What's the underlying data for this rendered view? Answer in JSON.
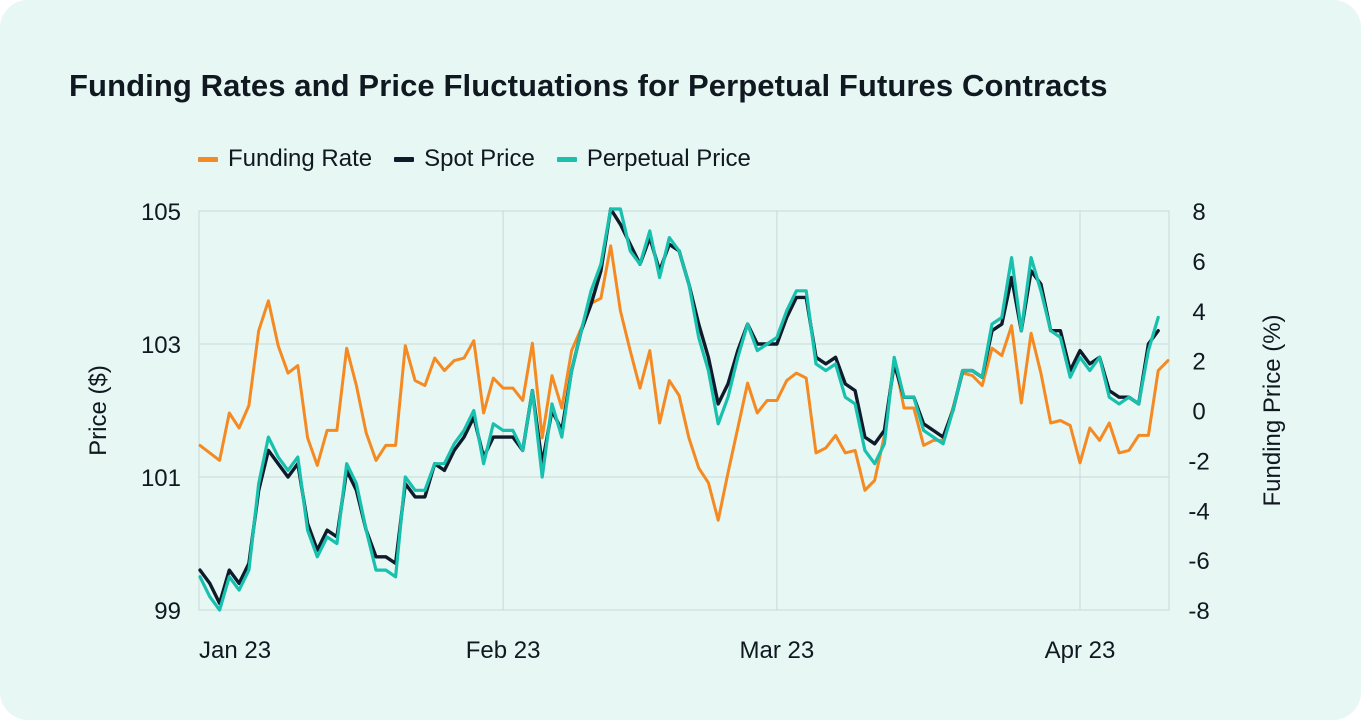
{
  "chart_data": {
    "type": "line",
    "title": "Funding Rates and Price Fluctuations for Perpetual Futures Contracts",
    "ylabel_left": "Price ($)",
    "ylabel_right": "Funding Price (%)",
    "ylim_left": [
      99,
      105
    ],
    "ylim_right": [
      -8,
      8
    ],
    "yticks_left": [
      "105",
      "103",
      "101",
      "99"
    ],
    "yticks_right": [
      "8",
      "6",
      "4",
      "2",
      "0",
      "-2",
      "-4",
      "-6",
      "-8"
    ],
    "x_labels": [
      "Jan 23",
      "Feb 23",
      "Mar 23",
      "Apr 23"
    ],
    "x_label_index": [
      0,
      31,
      59,
      90
    ],
    "grid": true,
    "legend": [
      "Funding Rate",
      "Spot Price",
      "Perpetual Price"
    ],
    "colors": {
      "funding": "#f58a22",
      "spot": "#0f1b2a",
      "perpetual": "#18c0ae"
    },
    "series": [
      {
        "name": "Funding Rate",
        "axis": "right",
        "values": [
          -1.4,
          -1.7,
          -2.0,
          -0.1,
          -0.7,
          0.2,
          3.2,
          4.4,
          2.6,
          1.5,
          1.8,
          -1.1,
          -2.2,
          -0.8,
          -0.8,
          2.5,
          1.0,
          -0.9,
          -2.0,
          -1.4,
          -1.4,
          2.6,
          1.2,
          1.0,
          2.1,
          1.6,
          2.0,
          2.1,
          2.8,
          -0.1,
          1.3,
          0.9,
          0.9,
          0.4,
          2.7,
          -1.1,
          1.4,
          0.1,
          2.4,
          3.3,
          4.3,
          4.5,
          6.6,
          4.0,
          2.4,
          0.9,
          2.4,
          -0.5,
          1.2,
          0.6,
          -1.1,
          -2.3,
          -2.9,
          -4.4,
          -2.5,
          -0.7,
          1.1,
          -0.1,
          0.4,
          0.4,
          1.2,
          1.5,
          1.3,
          -1.7,
          -1.5,
          -1.0,
          -1.7,
          -1.6,
          -3.2,
          -2.8,
          -1.0,
          2.1,
          0.1,
          0.1,
          -1.4,
          -1.2,
          -1.2,
          0.1,
          1.5,
          1.4,
          1.0,
          2.5,
          2.2,
          3.4,
          0.3,
          3.1,
          1.5,
          -0.5,
          -0.4,
          -0.6,
          -2.1,
          -0.7,
          -1.2,
          -0.5,
          -1.7,
          -1.6,
          -1.0,
          -1.0,
          1.6,
          2.0
        ]
      },
      {
        "name": "Spot Price",
        "axis": "left",
        "values": [
          99.6,
          99.4,
          99.1,
          99.6,
          99.4,
          99.7,
          100.8,
          101.4,
          101.2,
          101.0,
          101.2,
          100.3,
          99.9,
          100.2,
          100.1,
          101.1,
          100.8,
          100.2,
          99.8,
          99.8,
          99.7,
          100.9,
          100.7,
          100.7,
          101.2,
          101.1,
          101.4,
          101.6,
          101.9,
          101.3,
          101.6,
          101.6,
          101.6,
          101.4,
          102.3,
          101.2,
          102.0,
          101.7,
          102.6,
          103.2,
          103.6,
          104.1,
          105.1,
          104.8,
          104.5,
          104.2,
          104.6,
          104.1,
          104.5,
          104.4,
          103.9,
          103.3,
          102.8,
          102.1,
          102.4,
          102.9,
          103.3,
          103.0,
          103.0,
          103.0,
          103.4,
          103.7,
          103.7,
          102.8,
          102.7,
          102.8,
          102.4,
          102.3,
          101.6,
          101.5,
          101.7,
          102.7,
          102.2,
          102.2,
          101.8,
          101.7,
          101.6,
          102.0,
          102.6,
          102.6,
          102.5,
          103.2,
          103.3,
          104.0,
          103.2,
          104.1,
          103.9,
          103.2,
          103.2,
          102.6,
          102.9,
          102.7,
          102.8,
          102.3,
          102.2,
          102.2,
          102.1,
          103.0,
          103.2
        ]
      },
      {
        "name": "Perpetual Price",
        "axis": "left",
        "values": [
          99.5,
          99.2,
          98.9,
          99.5,
          99.3,
          99.6,
          100.9,
          101.6,
          101.3,
          101.1,
          101.3,
          100.2,
          99.8,
          100.1,
          100.0,
          101.2,
          100.9,
          100.2,
          99.6,
          99.6,
          99.5,
          101.0,
          100.8,
          100.8,
          101.2,
          101.2,
          101.5,
          101.7,
          102.0,
          101.2,
          101.8,
          101.7,
          101.7,
          101.4,
          102.3,
          101.0,
          102.1,
          101.6,
          102.6,
          103.2,
          103.8,
          104.2,
          105.3,
          105.1,
          104.4,
          104.2,
          104.7,
          104.0,
          104.6,
          104.4,
          103.9,
          103.1,
          102.6,
          101.8,
          102.2,
          102.8,
          103.3,
          102.9,
          103.0,
          103.1,
          103.5,
          103.8,
          103.8,
          102.7,
          102.6,
          102.7,
          102.2,
          102.1,
          101.4,
          101.2,
          101.5,
          102.8,
          102.2,
          102.2,
          101.7,
          101.6,
          101.5,
          102.0,
          102.6,
          102.6,
          102.5,
          103.3,
          103.4,
          104.3,
          103.2,
          104.3,
          103.8,
          103.2,
          103.1,
          102.5,
          102.8,
          102.6,
          102.8,
          102.2,
          102.1,
          102.2,
          102.1,
          102.9,
          103.4
        ]
      }
    ]
  }
}
